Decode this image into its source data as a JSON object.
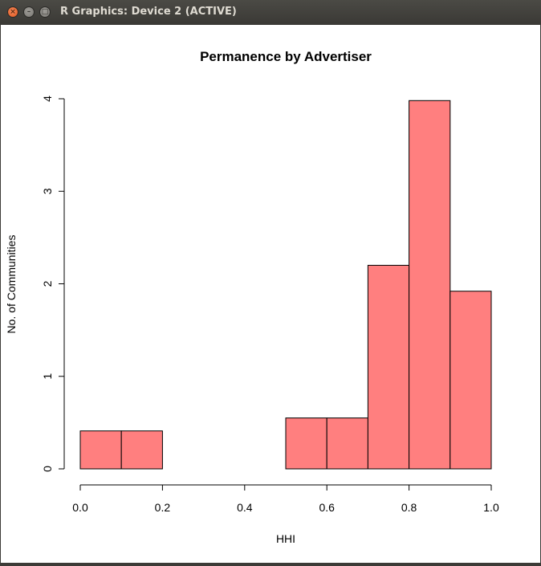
{
  "window": {
    "title": "R Graphics: Device 2 (ACTIVE)",
    "close_glyph": "×",
    "minimize_glyph": "–",
    "maximize_glyph": "□"
  },
  "chart_data": {
    "type": "bar",
    "title": "Permanence by Advertiser",
    "xlabel": "HHI",
    "ylabel": "No. of Communities",
    "bins": [
      {
        "x0": 0.0,
        "x1": 0.1,
        "value": 0.41
      },
      {
        "x0": 0.1,
        "x1": 0.2,
        "value": 0.41
      },
      {
        "x0": 0.2,
        "x1": 0.3,
        "value": 0.0
      },
      {
        "x0": 0.3,
        "x1": 0.4,
        "value": 0.0
      },
      {
        "x0": 0.4,
        "x1": 0.5,
        "value": 0.0
      },
      {
        "x0": 0.5,
        "x1": 0.6,
        "value": 0.55
      },
      {
        "x0": 0.6,
        "x1": 0.7,
        "value": 0.55
      },
      {
        "x0": 0.7,
        "x1": 0.8,
        "value": 2.2
      },
      {
        "x0": 0.8,
        "x1": 0.9,
        "value": 3.98
      },
      {
        "x0": 0.9,
        "x1": 1.0,
        "value": 1.92
      }
    ],
    "xlim": [
      0.0,
      1.0
    ],
    "ylim": [
      0,
      4
    ],
    "xticks": [
      0.0,
      0.2,
      0.4,
      0.6,
      0.8,
      1.0
    ],
    "xtick_labels": [
      "0.0",
      "0.2",
      "0.4",
      "0.6",
      "0.8",
      "1.0"
    ],
    "yticks": [
      0,
      1,
      2,
      3,
      4
    ],
    "ytick_labels": [
      "0",
      "1",
      "2",
      "3",
      "4"
    ],
    "bar_color": "#ff7f7f",
    "edge_color": "#000000",
    "grid": false
  }
}
